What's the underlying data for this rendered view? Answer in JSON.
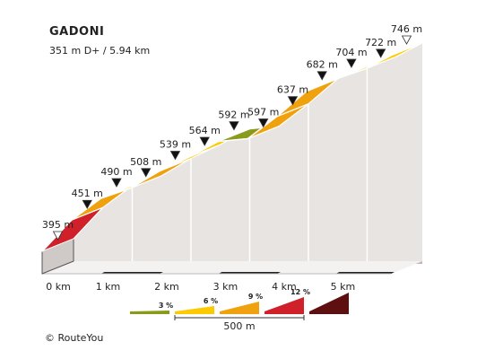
{
  "header": {
    "title": "GADONI",
    "subtitle": "351 m D+ / 5.94 km"
  },
  "copyright": "© RouteYou",
  "colors": {
    "grade_3": "#8a9a1b",
    "grade_6": "#fdc900",
    "grade_9": "#f0a20e",
    "grade_12": "#d0202a",
    "grade_15": "#5e1010",
    "wall": "#e8e4e2",
    "base": "#222222"
  },
  "chart_data": {
    "type": "area",
    "title": "GADONI",
    "subtitle": "351 m D+ / 5.94 km",
    "xlabel": "",
    "ylabel": "",
    "x_unit": "km",
    "xlim": [
      0,
      5.94
    ],
    "ylim": [
      395,
      746
    ],
    "x_tick_labels": [
      "0 km",
      "1 km",
      "2 km",
      "3 km",
      "4 km",
      "5 km"
    ],
    "x_ticks": [
      0,
      1,
      2,
      3,
      4,
      5
    ],
    "points": [
      {
        "km": 0.0,
        "elevation": 395,
        "label": "395 m",
        "marker": "start"
      },
      {
        "km": 0.5,
        "elevation": 451,
        "label": "451 m",
        "marker": "point"
      },
      {
        "km": 1.0,
        "elevation": 490,
        "label": "490 m",
        "marker": "point"
      },
      {
        "km": 1.5,
        "elevation": 508,
        "label": "508 m",
        "marker": "point"
      },
      {
        "km": 2.0,
        "elevation": 539,
        "label": "539 m",
        "marker": "point"
      },
      {
        "km": 2.5,
        "elevation": 564,
        "label": "564 m",
        "marker": "point"
      },
      {
        "km": 3.0,
        "elevation": 592,
        "label": "592 m",
        "marker": "point"
      },
      {
        "km": 3.5,
        "elevation": 597,
        "label": "597 m",
        "marker": "point"
      },
      {
        "km": 4.0,
        "elevation": 637,
        "label": "637 m",
        "marker": "point"
      },
      {
        "km": 4.5,
        "elevation": 682,
        "label": "682 m",
        "marker": "point"
      },
      {
        "km": 5.0,
        "elevation": 704,
        "label": "704 m",
        "marker": "point"
      },
      {
        "km": 5.5,
        "elevation": 722,
        "label": "722 m",
        "marker": "point"
      },
      {
        "km": 5.94,
        "elevation": 746,
        "label": "746 m",
        "marker": "end"
      }
    ],
    "segments": [
      {
        "from_km": 0.0,
        "to_km": 0.5,
        "grade": "grade_12"
      },
      {
        "from_km": 0.5,
        "to_km": 1.0,
        "grade": "grade_9"
      },
      {
        "from_km": 1.0,
        "to_km": 1.5,
        "grade": "grade_6"
      },
      {
        "from_km": 1.5,
        "to_km": 2.0,
        "grade": "grade_9"
      },
      {
        "from_km": 2.0,
        "to_km": 2.5,
        "grade": "grade_6"
      },
      {
        "from_km": 2.5,
        "to_km": 3.0,
        "grade": "grade_6"
      },
      {
        "from_km": 3.0,
        "to_km": 3.5,
        "grade": "grade_3"
      },
      {
        "from_km": 3.5,
        "to_km": 4.0,
        "grade": "grade_9"
      },
      {
        "from_km": 4.0,
        "to_km": 4.5,
        "grade": "grade_9"
      },
      {
        "from_km": 4.5,
        "to_km": 5.0,
        "grade": "grade_6"
      },
      {
        "from_km": 5.0,
        "to_km": 5.5,
        "grade": "grade_6"
      },
      {
        "from_km": 5.5,
        "to_km": 5.94,
        "grade": "grade_6"
      }
    ],
    "legend": {
      "items": [
        {
          "label": "3 %",
          "grade": "grade_3"
        },
        {
          "label": "6 %",
          "grade": "grade_6"
        },
        {
          "label": "9 %",
          "grade": "grade_9"
        },
        {
          "label": "12 %",
          "grade": "grade_12"
        },
        {
          "label": "",
          "grade": "grade_15"
        }
      ],
      "scale_label": "500 m",
      "placement": "bottom"
    }
  }
}
